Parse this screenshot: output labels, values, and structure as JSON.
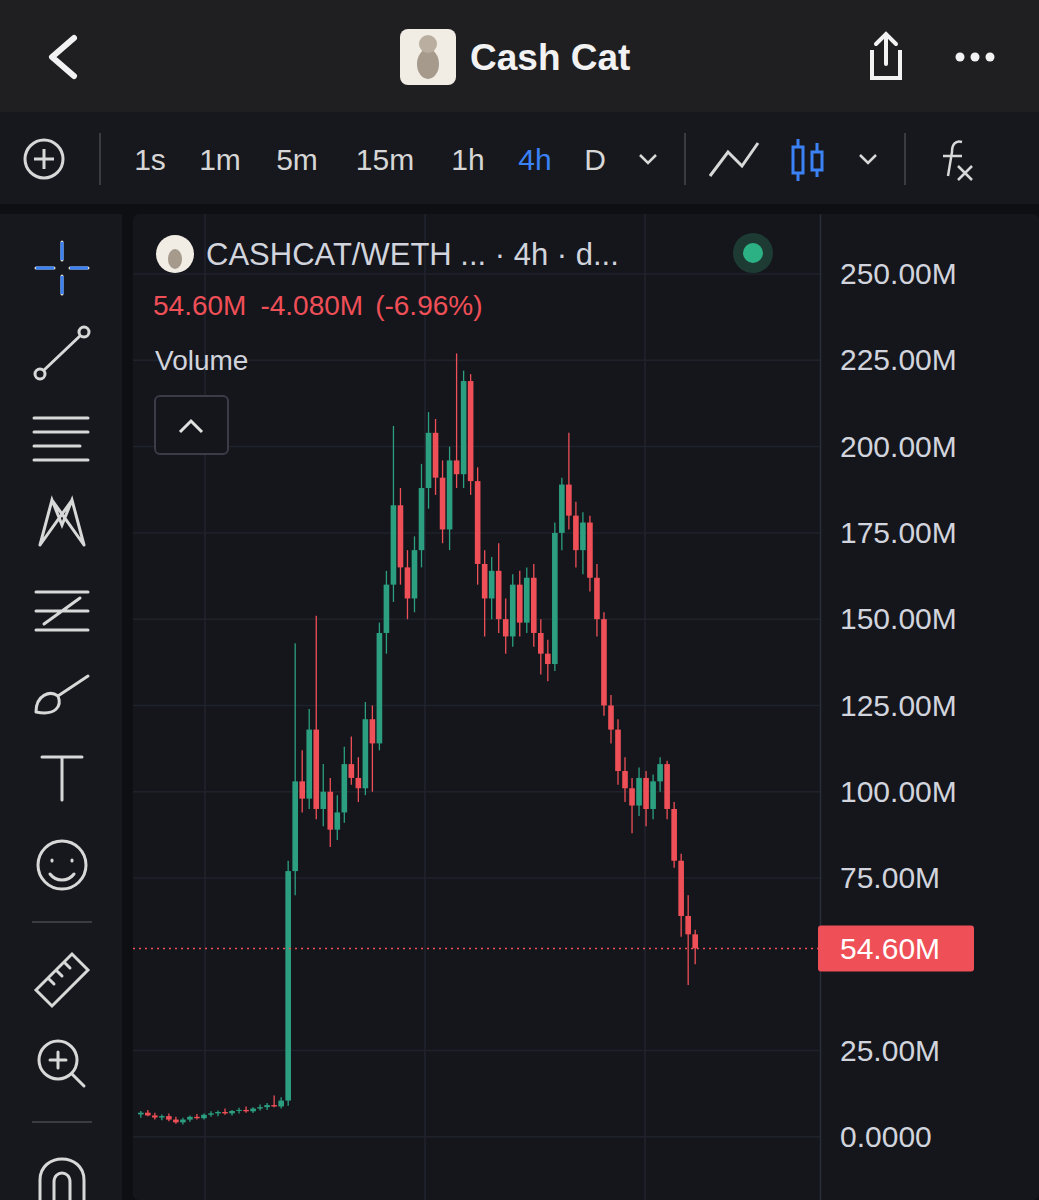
{
  "header": {
    "title": "Cash Cat"
  },
  "toolbar": {
    "intervals": [
      {
        "label": "1s"
      },
      {
        "label": "1m"
      },
      {
        "label": "5m"
      },
      {
        "label": "15m"
      },
      {
        "label": "1h"
      },
      {
        "label": "4h",
        "active": true
      },
      {
        "label": "D"
      }
    ]
  },
  "chart_data": {
    "type": "candlestick",
    "title": "CASHCAT/WETH ... · 4h · d...",
    "indicator": "Volume",
    "last": {
      "value": 54.6,
      "label": "54.60M"
    },
    "change": {
      "value": -4.08,
      "label": "-4.080M"
    },
    "change_pct": {
      "value": -6.96,
      "label": "(-6.96%)"
    },
    "categories": [
      null,
      null,
      null,
      null,
      null,
      null,
      null,
      null,
      null,
      null,
      null,
      null,
      null,
      null,
      null,
      null,
      null,
      null,
      null,
      null,
      null,
      null,
      null,
      null,
      null,
      null,
      null,
      null,
      null,
      null,
      null,
      null,
      null,
      null,
      null,
      null,
      null,
      null,
      null,
      null,
      null,
      null,
      null,
      null,
      null,
      null,
      null,
      null,
      null,
      null,
      null,
      null,
      null,
      null,
      null,
      null,
      null,
      null,
      null,
      null,
      null,
      null,
      null,
      null,
      null,
      null,
      null,
      null,
      null,
      null,
      null,
      null,
      null,
      null,
      null,
      null,
      null,
      null,
      null,
      null
    ],
    "open": [
      6.5,
      7,
      6.2,
      5.6,
      6.0,
      5.0,
      4.2,
      5.0,
      5.8,
      5.4,
      6.4,
      6.8,
      7.2,
      6.8,
      7.5,
      7.8,
      7.4,
      8.2,
      8.6,
      9.2,
      8.8,
      10.5,
      77,
      103,
      98,
      118,
      95,
      100,
      89,
      94,
      108,
      104,
      101,
      121,
      114,
      146,
      160,
      183,
      165,
      156,
      170,
      188,
      204,
      191,
      176,
      196,
      192,
      219,
      190,
      166,
      156,
      164,
      150,
      145,
      160,
      149,
      162,
      146,
      140,
      137,
      175,
      189,
      180,
      170,
      178,
      162,
      150,
      125,
      118,
      106,
      101,
      96,
      104,
      95,
      103,
      108,
      95,
      80,
      64,
      58.68
    ],
    "high": [
      7.5,
      7.8,
      7.0,
      6.5,
      6.8,
      5.8,
      5.5,
      6.2,
      6.6,
      6.8,
      7.4,
      7.6,
      8.2,
      7.8,
      8.4,
      8.8,
      8.6,
      9.4,
      9.8,
      12.0,
      11.5,
      80,
      143,
      112,
      124,
      151,
      108,
      104,
      99,
      113,
      116,
      110,
      126,
      125,
      149,
      164,
      206,
      188,
      170,
      174,
      195,
      210,
      208,
      196,
      200,
      227,
      222,
      221,
      194,
      170,
      168,
      172,
      156,
      163,
      164,
      165,
      166,
      150,
      144,
      178,
      191,
      204,
      184,
      181,
      180,
      166,
      152,
      128,
      121,
      110,
      104,
      107,
      106,
      105,
      110,
      109,
      97,
      82,
      70,
      60
    ],
    "low": [
      5.5,
      6,
      5.0,
      4.8,
      4.5,
      3.8,
      3.6,
      4.4,
      5.0,
      5.0,
      5.8,
      6.0,
      6.4,
      6.2,
      6.8,
      7.0,
      6.9,
      7.6,
      7.8,
      8.6,
      8.2,
      9,
      70,
      94,
      95,
      92,
      90,
      84,
      86,
      91,
      102,
      97,
      99,
      100,
      112,
      140,
      155,
      160,
      150,
      152,
      165,
      182,
      186,
      172,
      170,
      188,
      188,
      186,
      160,
      145,
      150,
      146,
      140,
      142,
      145,
      146,
      142,
      134,
      132,
      135,
      170,
      176,
      165,
      163,
      158,
      145,
      122,
      114,
      102,
      97,
      88,
      93,
      90,
      92,
      100,
      92,
      78,
      58,
      44,
      50
    ],
    "close": [
      7,
      6.2,
      5.6,
      6.0,
      5.0,
      4.2,
      5.0,
      5.8,
      5.4,
      6.4,
      6.8,
      7.2,
      6.8,
      7.5,
      7.8,
      7.4,
      8.2,
      8.6,
      9.2,
      8.8,
      10.5,
      77,
      103,
      98,
      118,
      95,
      100,
      89,
      94,
      108,
      104,
      101,
      121,
      114,
      146,
      160,
      183,
      165,
      156,
      170,
      188,
      204,
      191,
      176,
      196,
      192,
      219,
      190,
      166,
      156,
      164,
      150,
      145,
      160,
      149,
      162,
      146,
      140,
      137,
      175,
      189,
      180,
      170,
      178,
      162,
      150,
      125,
      118,
      106,
      101,
      96,
      104,
      95,
      103,
      108,
      95,
      80,
      64,
      58.68,
      54.6
    ],
    "color": {
      "up": "#2b9f80",
      "down": "#ef4f57"
    },
    "ylim": [
      -18.3,
      267.4
    ],
    "yticks": [
      {
        "value": 0,
        "label": "0.0000"
      },
      {
        "value": 25,
        "label": "25.00M"
      },
      {
        "value": 75,
        "label": "75.00M"
      },
      {
        "value": 100,
        "label": "100.00M"
      },
      {
        "value": 125,
        "label": "125.00M"
      },
      {
        "value": 150,
        "label": "150.00M"
      },
      {
        "value": 175,
        "label": "175.00M"
      },
      {
        "value": 200,
        "label": "200.00M"
      },
      {
        "value": 225,
        "label": "225.00M"
      },
      {
        "value": 250,
        "label": "250.00M"
      }
    ],
    "grid": true,
    "tick_labels": "y"
  }
}
